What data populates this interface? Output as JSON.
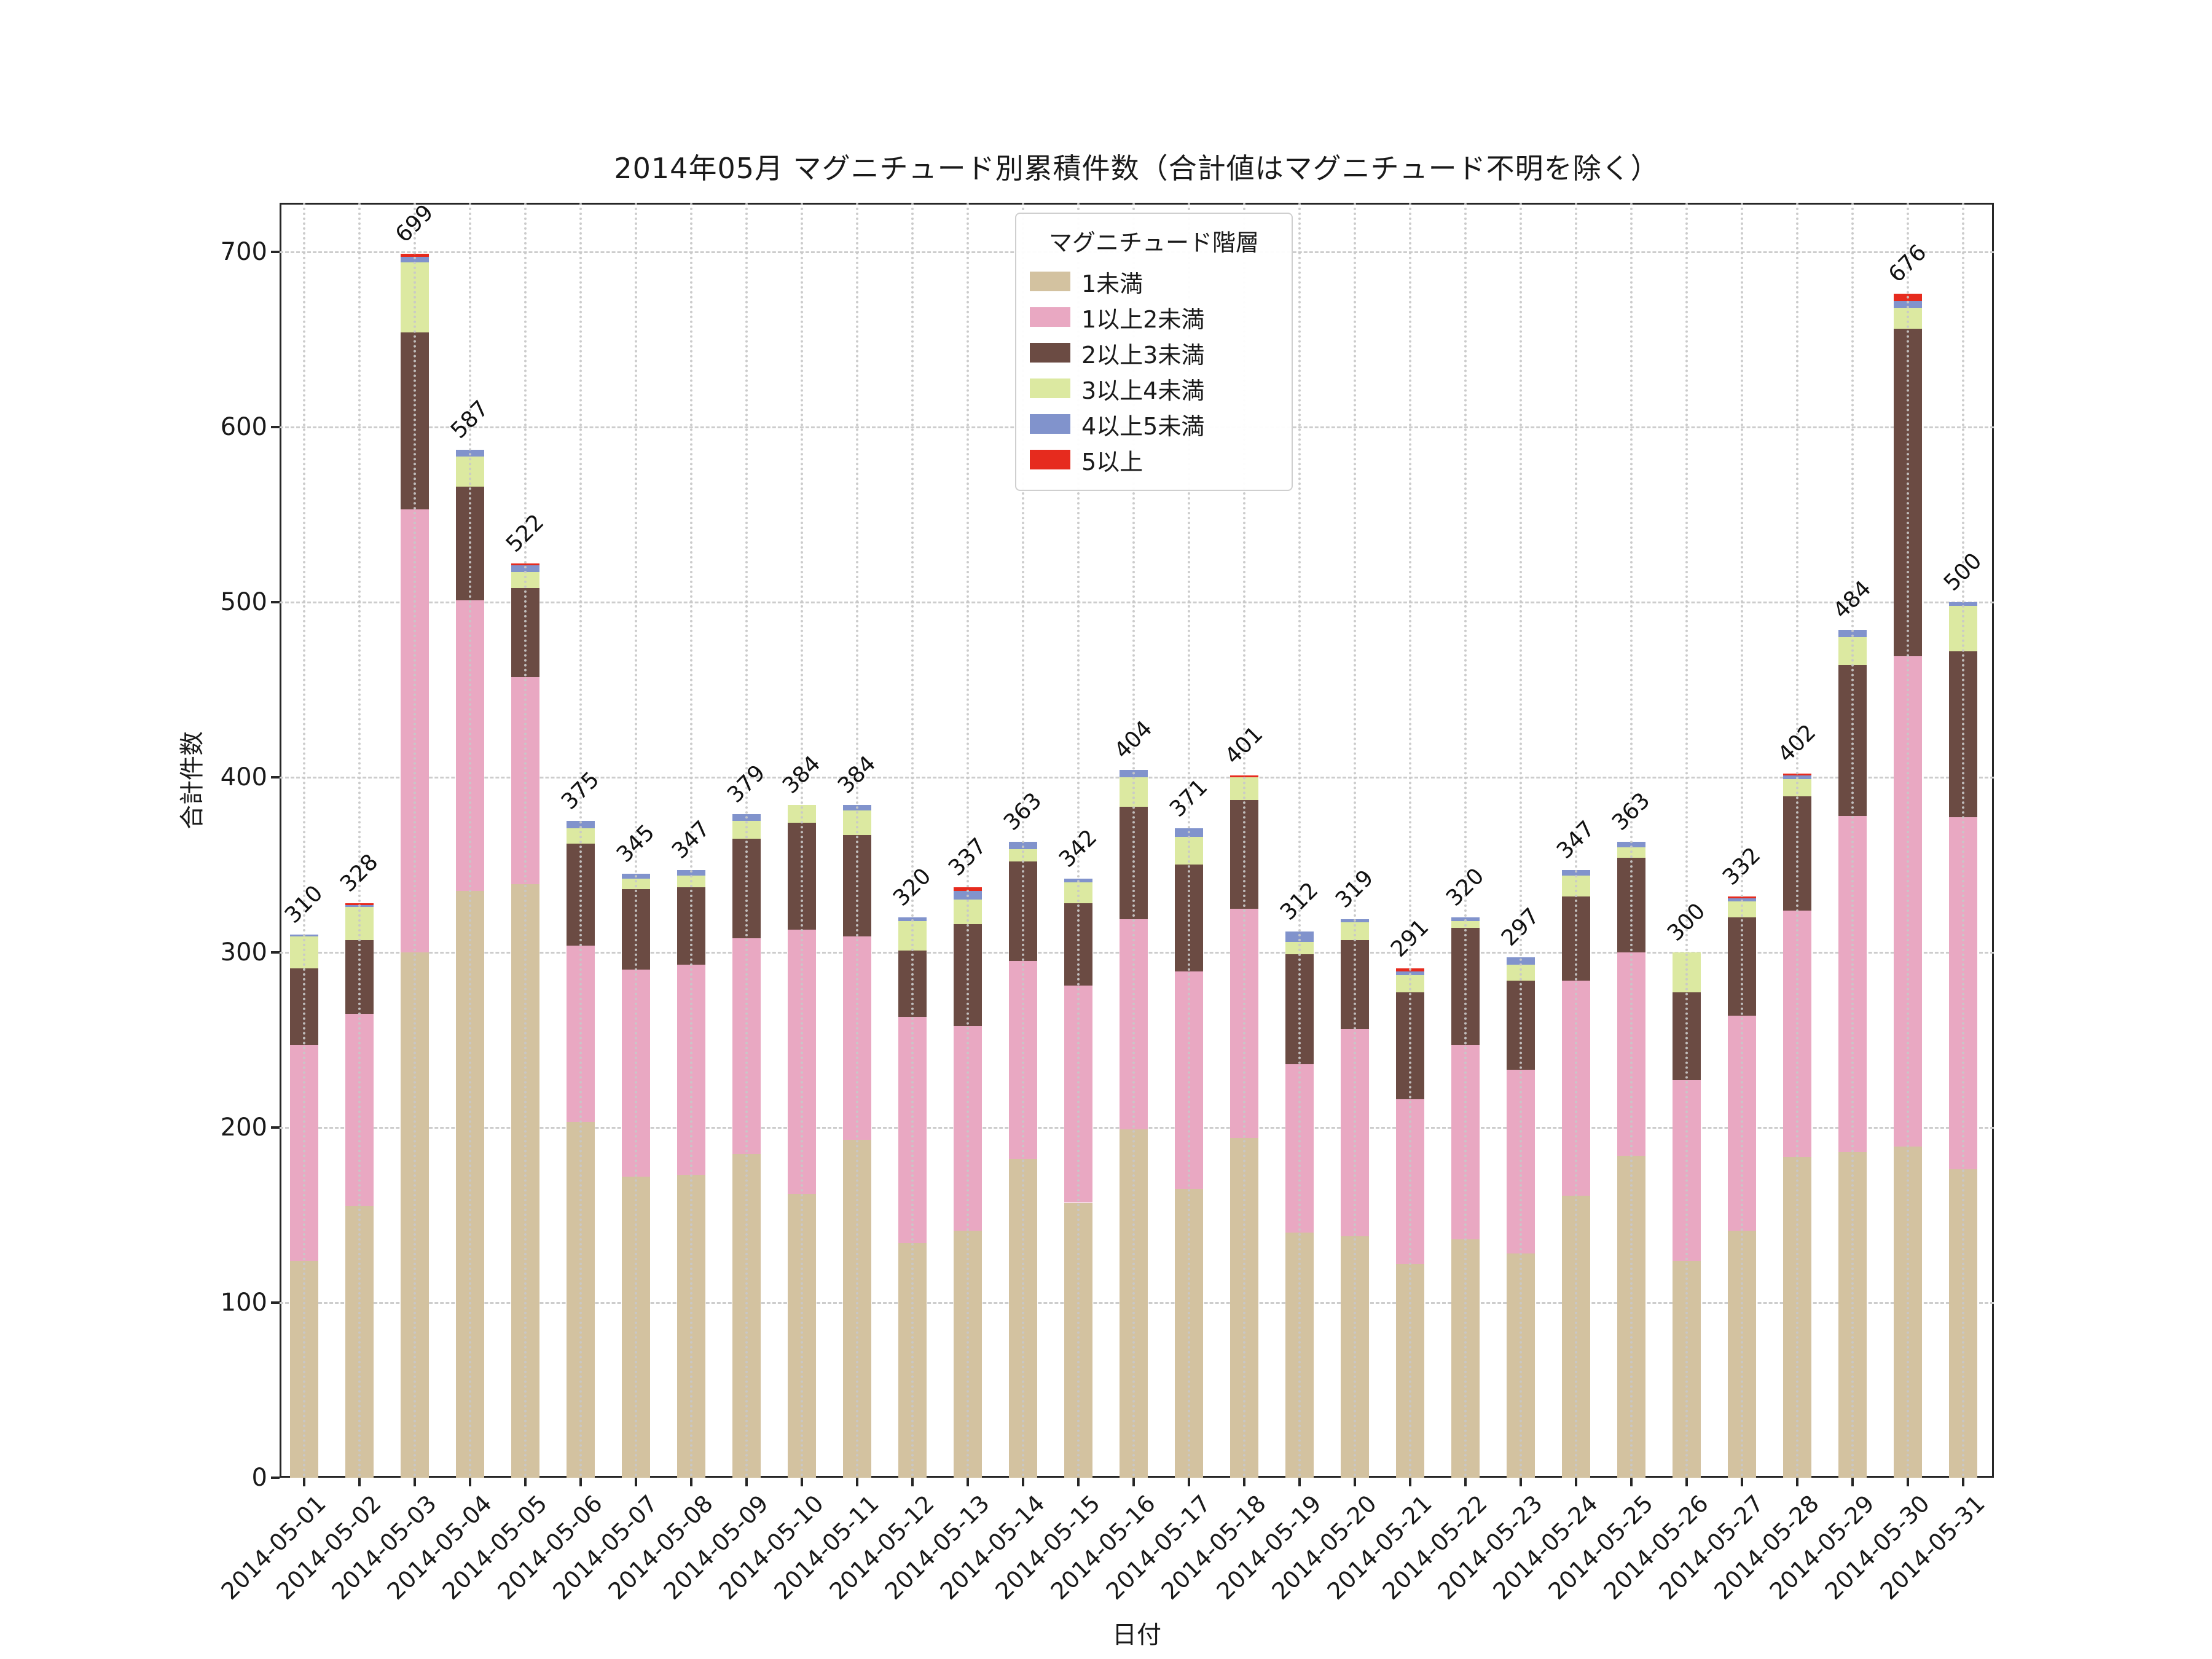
{
  "title": "2014年05月 マグニチュード別累積件数（合計値はマグニチュード不明を除く）",
  "axes": {
    "x_label": "日付",
    "y_label": "合計件数",
    "y_ticks": [
      0,
      100,
      200,
      300,
      400,
      500,
      600,
      700
    ]
  },
  "legend": {
    "title": "マグニチュード階層"
  },
  "colors": {
    "spine": "#262626",
    "grid": "#cdcdcd",
    "background": "#ffffff"
  },
  "chart_data": {
    "type": "bar",
    "stacked": true,
    "title": "2014年05月 マグニチュード別累積件数（合計値はマグニチュード不明を除く）",
    "xlabel": "日付",
    "ylabel": "合計件数",
    "ylim": [
      0,
      728
    ],
    "grid": true,
    "legend_position": "upper center-left",
    "categories": [
      "2014-05-01",
      "2014-05-02",
      "2014-05-03",
      "2014-05-04",
      "2014-05-05",
      "2014-05-06",
      "2014-05-07",
      "2014-05-08",
      "2014-05-09",
      "2014-05-10",
      "2014-05-11",
      "2014-05-12",
      "2014-05-13",
      "2014-05-14",
      "2014-05-15",
      "2014-05-16",
      "2014-05-17",
      "2014-05-18",
      "2014-05-19",
      "2014-05-20",
      "2014-05-21",
      "2014-05-22",
      "2014-05-23",
      "2014-05-24",
      "2014-05-25",
      "2014-05-26",
      "2014-05-27",
      "2014-05-28",
      "2014-05-29",
      "2014-05-30",
      "2014-05-31"
    ],
    "totals": [
      310,
      328,
      699,
      587,
      522,
      375,
      345,
      347,
      379,
      384,
      384,
      320,
      337,
      363,
      342,
      404,
      371,
      401,
      312,
      319,
      291,
      320,
      297,
      347,
      363,
      300,
      332,
      402,
      484,
      676,
      500
    ],
    "series": [
      {
        "name": "1未満",
        "color": "#d3c2a0",
        "values": [
          124,
          155,
          300,
          335,
          339,
          203,
          172,
          173,
          185,
          162,
          193,
          134,
          141,
          182,
          157,
          199,
          165,
          194,
          140,
          138,
          122,
          136,
          128,
          161,
          184,
          124,
          141,
          183,
          186,
          189,
          176
        ]
      },
      {
        "name": "1以上2未満",
        "color": "#e9a8c2",
        "values": [
          123,
          110,
          253,
          166,
          118,
          101,
          118,
          120,
          123,
          151,
          116,
          129,
          117,
          113,
          124,
          120,
          124,
          131,
          96,
          118,
          94,
          111,
          105,
          123,
          116,
          103,
          123,
          141,
          192,
          280,
          201
        ]
      },
      {
        "name": "2以上3未満",
        "color": "#6b4b43",
        "values": [
          44,
          42,
          101,
          65,
          51,
          58,
          46,
          44,
          57,
          61,
          58,
          38,
          58,
          57,
          47,
          64,
          61,
          62,
          63,
          51,
          61,
          67,
          51,
          48,
          54,
          50,
          56,
          65,
          86,
          187,
          95
        ]
      },
      {
        "name": "3以上4未満",
        "color": "#dce9a1",
        "values": [
          18,
          19,
          40,
          17,
          9,
          9,
          6,
          7,
          10,
          10,
          14,
          17,
          14,
          7,
          12,
          17,
          16,
          13,
          7,
          10,
          10,
          4,
          9,
          12,
          6,
          23,
          9,
          10,
          16,
          12,
          26
        ]
      },
      {
        "name": "4以上5未満",
        "color": "#8193cc",
        "values": [
          1,
          1,
          3,
          4,
          4,
          4,
          3,
          3,
          4,
          0,
          3,
          2,
          5,
          4,
          2,
          4,
          5,
          0,
          6,
          2,
          2,
          2,
          4,
          3,
          3,
          0,
          2,
          2,
          4,
          4,
          2
        ]
      },
      {
        "name": "5以上",
        "color": "#e62b1e",
        "values": [
          0,
          1,
          2,
          0,
          1,
          0,
          0,
          0,
          0,
          0,
          0,
          0,
          2,
          0,
          0,
          0,
          0,
          1,
          0,
          0,
          2,
          0,
          0,
          0,
          0,
          0,
          1,
          1,
          0,
          4,
          0
        ]
      }
    ]
  }
}
